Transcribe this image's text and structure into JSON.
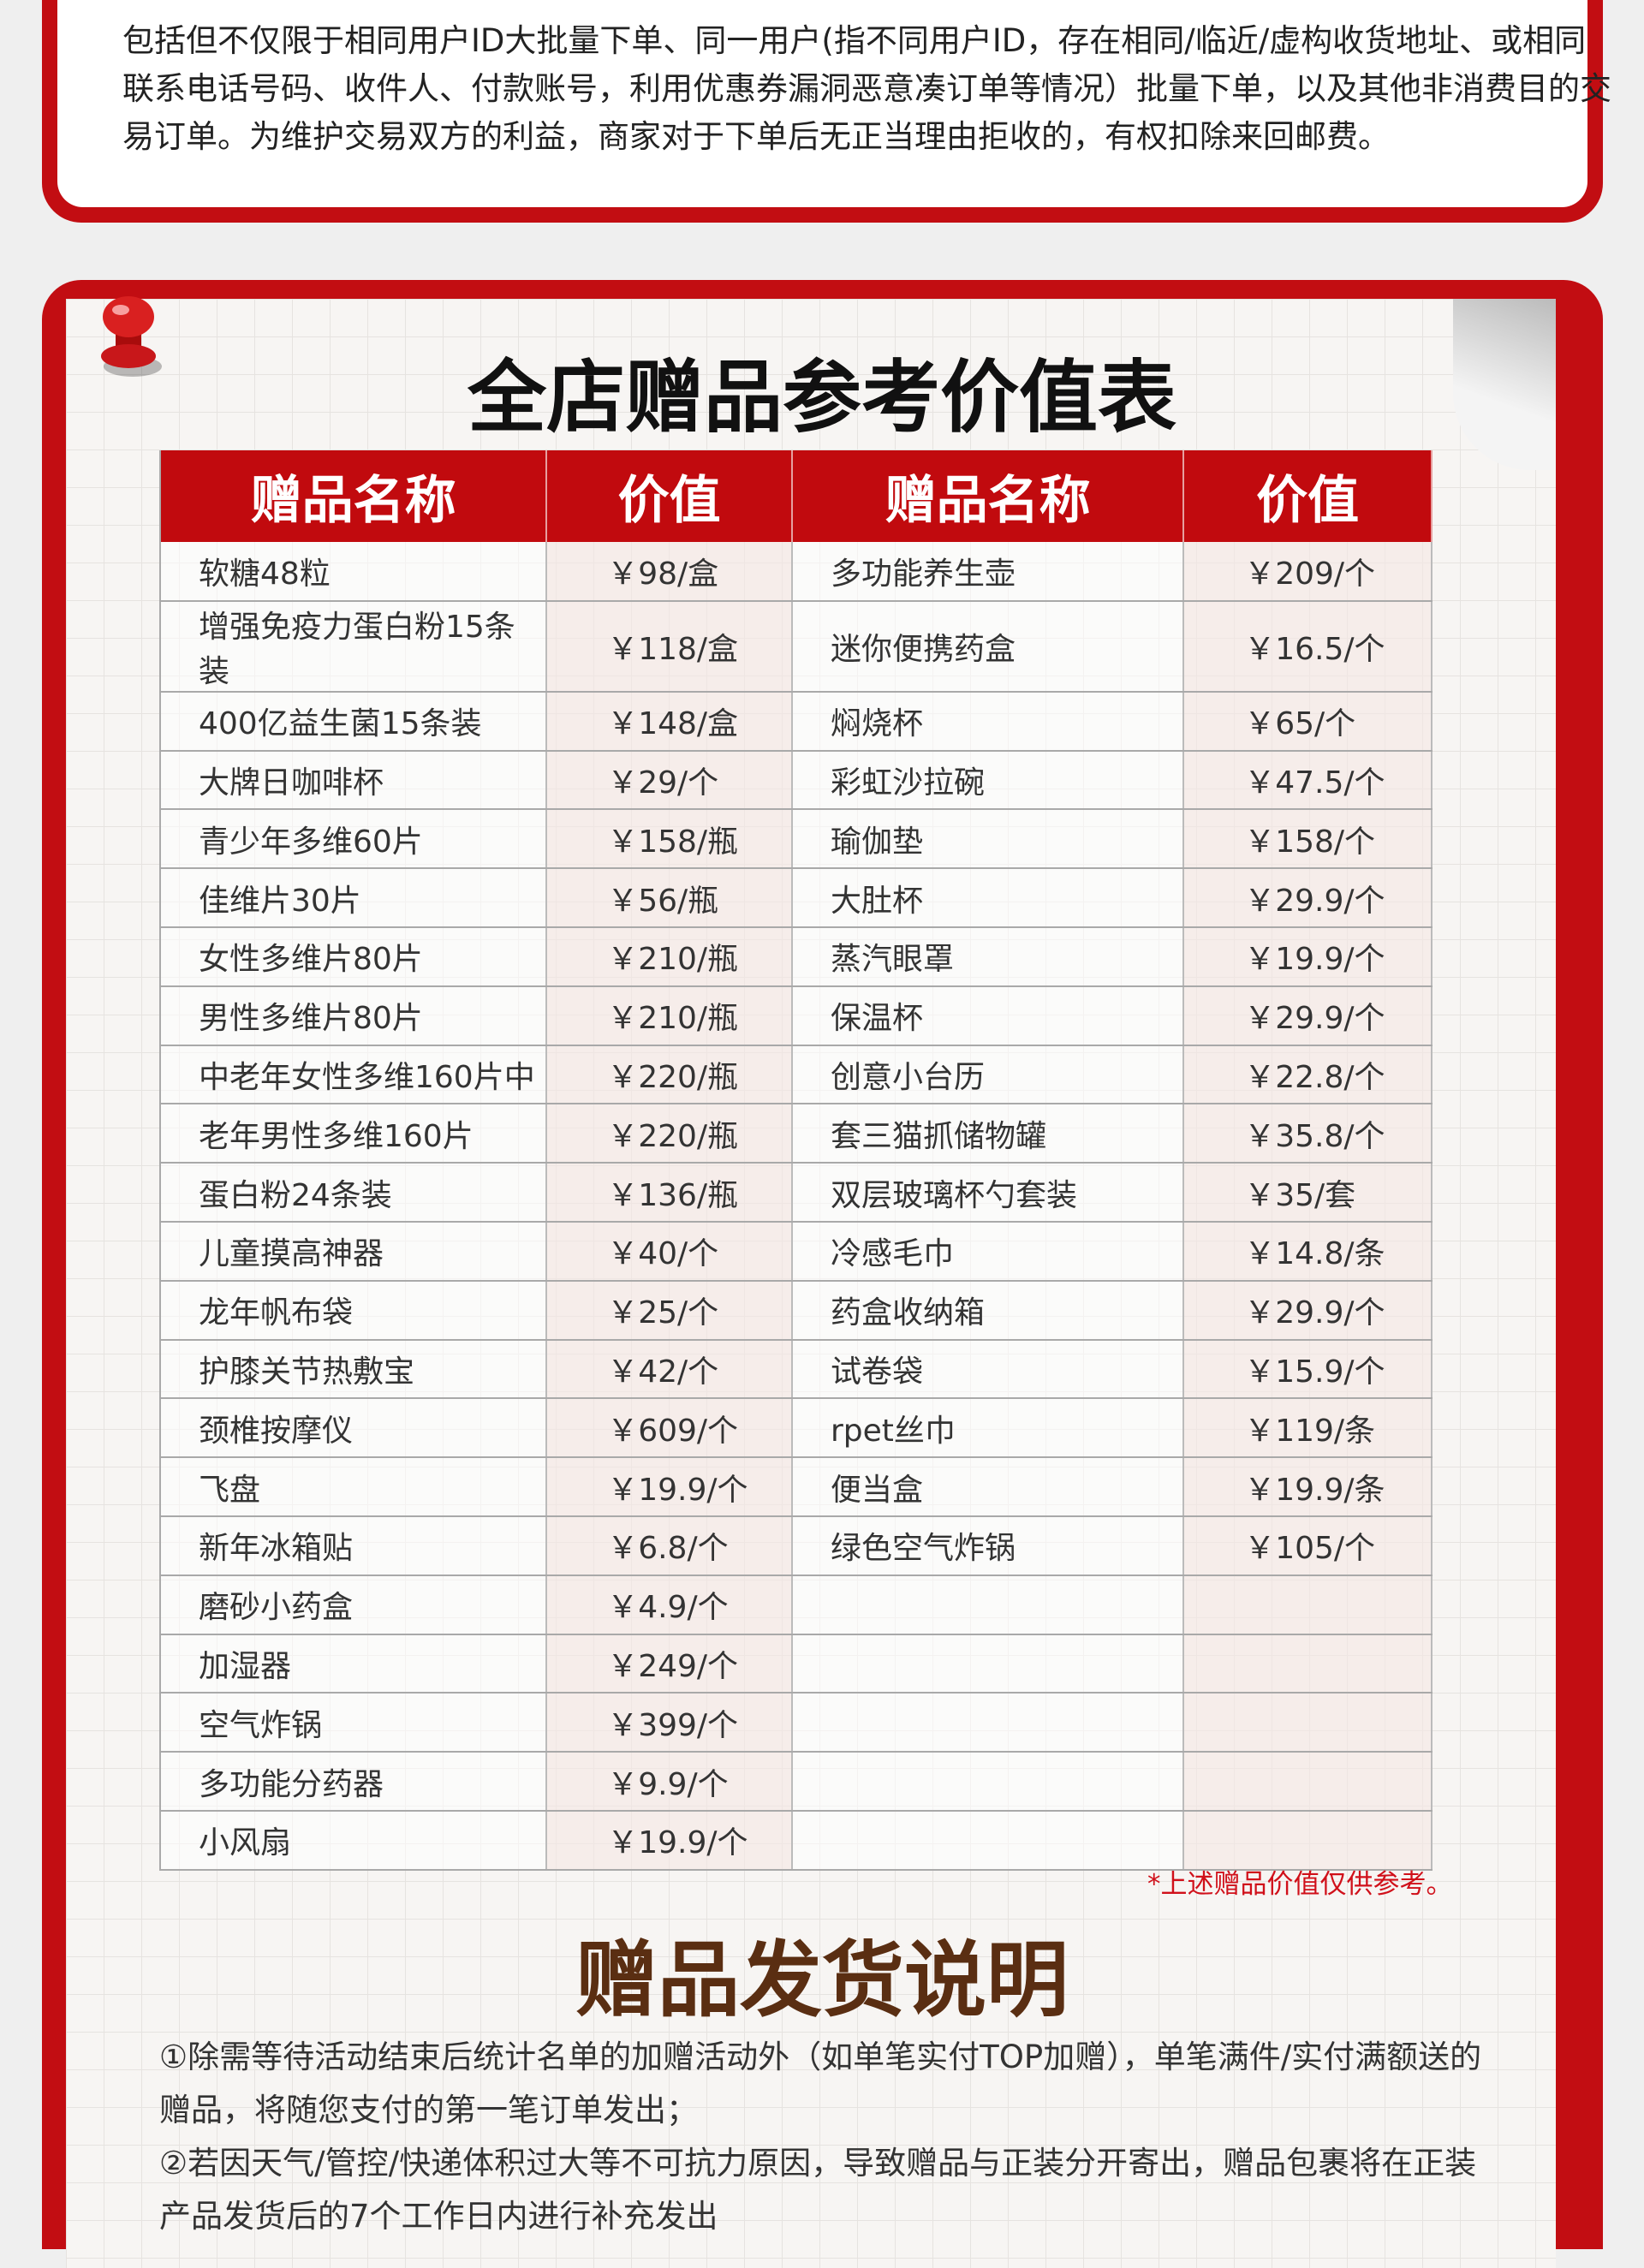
{
  "notice": {
    "text": "包括但不仅限于相同用户ID大批量下单、同一用户(指不同用户ID，存在相同/临近/虚构收货地址、或相同联系电话号码、收件人、付款账号，利用优惠券漏洞恶意凑订单等情况）批量下单，以及其他非消费目的交易订单。为维护交易双方的利益，商家对于下单后无正当理由拒收的，有权扣除来回邮费。"
  },
  "gift_table": {
    "title": "全店赠品参考价值表",
    "headers": [
      "赠品名称",
      "价值",
      "赠品名称",
      "价值"
    ],
    "rows": [
      [
        "软糖48粒",
        "￥98/盒",
        " 多功能养生壶",
        "￥209/个"
      ],
      [
        "增强免疫力蛋白粉15条装",
        "￥118/盒",
        "迷你便携药盒",
        "￥16.5/个"
      ],
      [
        "400亿益生菌15条装",
        "￥148/盒",
        "焖烧杯",
        "￥65/个"
      ],
      [
        "大牌日咖啡杯",
        "￥29/个",
        "彩虹沙拉碗",
        "￥47.5/个"
      ],
      [
        "青少年多维60片",
        "￥158/瓶",
        "瑜伽垫",
        "￥158/个"
      ],
      [
        "佳维片30片",
        "￥56/瓶",
        "大肚杯",
        "￥29.9/个"
      ],
      [
        "女性多维片80片",
        "￥210/瓶",
        "蒸汽眼罩",
        "￥19.9/个"
      ],
      [
        "男性多维片80片",
        "￥210/瓶",
        "保温杯",
        "￥29.9/个"
      ],
      [
        "中老年女性多维160片中",
        "￥220/瓶",
        "创意小台历",
        "￥22.8/个"
      ],
      [
        "老年男性多维160片",
        "￥220/瓶",
        "套三猫抓储物罐",
        "￥35.8/个"
      ],
      [
        "蛋白粉24条装",
        "￥136/瓶",
        "双层玻璃杯勺套装",
        "￥35/套"
      ],
      [
        "儿童摸高神器",
        "￥40/个",
        "冷感毛巾",
        "￥14.8/条"
      ],
      [
        "龙年帆布袋",
        "￥25/个",
        "药盒收纳箱",
        "￥29.9/个"
      ],
      [
        "护膝关节热敷宝",
        "￥42/个",
        "试卷袋",
        "￥15.9/个"
      ],
      [
        "颈椎按摩仪",
        "￥609/个",
        "rpet丝巾",
        "￥119/条"
      ],
      [
        "飞盘",
        "￥19.9/个",
        "便当盒",
        "￥19.9/条"
      ],
      [
        "新年冰箱贴",
        "￥6.8/个",
        "绿色空气炸锅",
        "￥105/个"
      ],
      [
        "磨砂小药盒",
        "￥4.9/个",
        "",
        ""
      ],
      [
        "加湿器",
        "￥249/个",
        "",
        ""
      ],
      [
        "空气炸锅",
        "￥399/个",
        "",
        ""
      ],
      [
        "多功能分药器",
        "￥9.9/个",
        "",
        ""
      ],
      [
        "小风扇",
        "￥19.9/个",
        "",
        ""
      ]
    ],
    "footnote": "*上述赠品价值仅供参考。"
  },
  "shipping": {
    "title": "赠品发货说明",
    "items": [
      "①除需等待活动结束后统计名单的加赠活动外（如单笔实付TOP加赠），单笔满件/实付满额送的赠品，将随您支付的第一笔订单发出；",
      "②若因天气/管控/快递体积过大等不可抗力原因，导致赠品与正装分开寄出，赠品包裹将在正装产品发货后的7个工作日内进行补充发出"
    ]
  },
  "colors": {
    "brand_red": "#c20d12",
    "heading_brown": "#5a2e12"
  }
}
